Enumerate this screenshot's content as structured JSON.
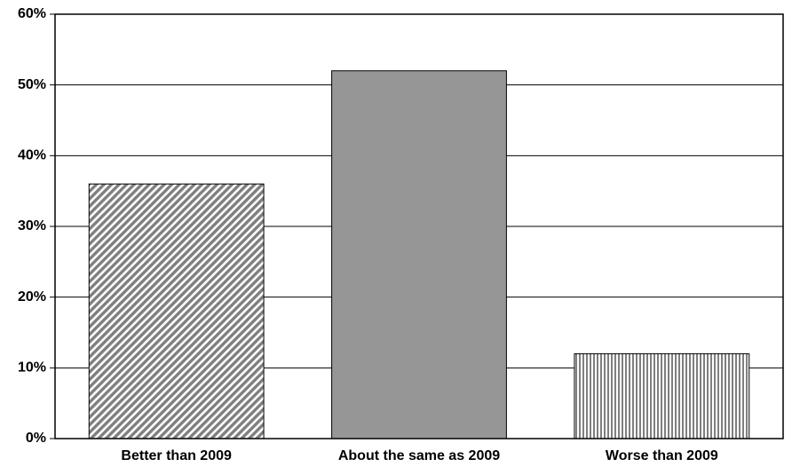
{
  "chart_data": {
    "type": "bar",
    "categories": [
      "Better than 2009",
      "About the same as 2009",
      "Worse than 2009"
    ],
    "values": [
      36,
      52,
      12
    ],
    "colors": [
      "#7f7f7f",
      "#969696",
      "#7f7f7f"
    ],
    "patterns": [
      "diagonal",
      "solid",
      "vertical"
    ],
    "ylim": [
      0,
      60
    ],
    "yticks": [
      {
        "value": 0,
        "label": "0%"
      },
      {
        "value": 10,
        "label": "10%"
      },
      {
        "value": 20,
        "label": "20%"
      },
      {
        "value": 30,
        "label": "30%"
      },
      {
        "value": 40,
        "label": "40%"
      },
      {
        "value": 50,
        "label": "50%"
      },
      {
        "value": 60,
        "label": "60%"
      }
    ],
    "grid": true
  }
}
